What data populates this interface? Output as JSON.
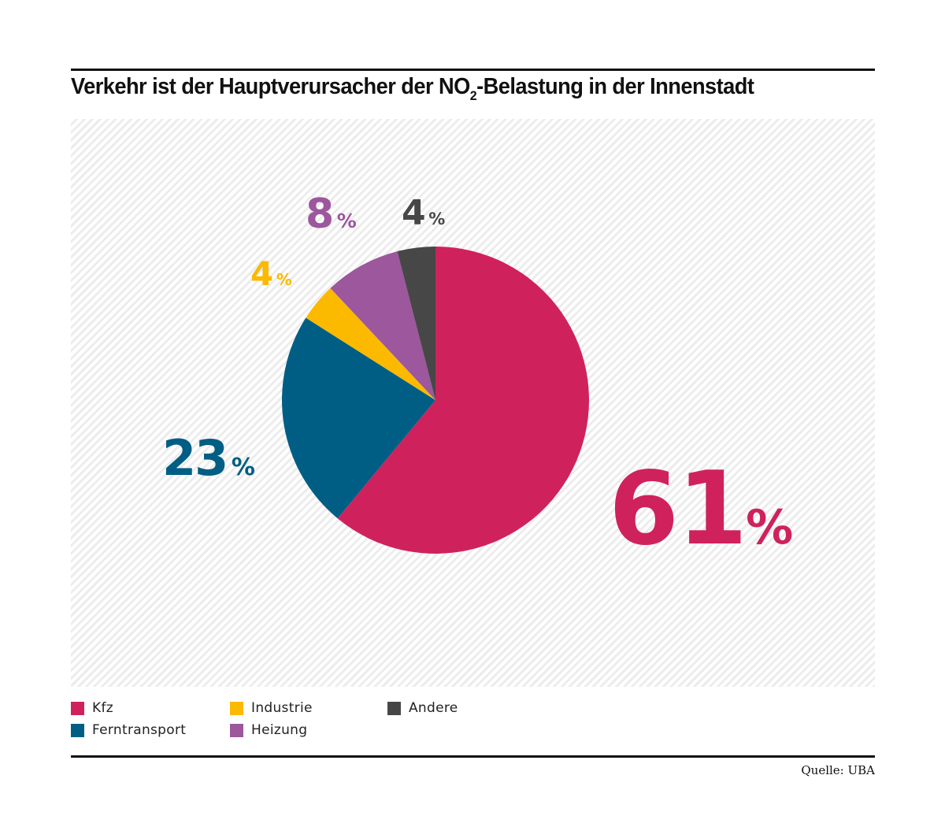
{
  "chart_data": {
    "type": "pie",
    "title_parts": {
      "before": "Verkehr ist der Hauptverursacher der NO",
      "subscript": "2",
      "after": "-Belastung in der Innenstadt"
    },
    "start_angle_deg": 0,
    "direction": "clockwise",
    "slices": [
      {
        "key": "kfz",
        "label": "Kfz",
        "value": 61,
        "value_label": "61",
        "unit": "%",
        "color": "#cf225c"
      },
      {
        "key": "ferntransport",
        "label": "Ferntransport",
        "value": 23,
        "value_label": "23",
        "unit": "%",
        "color": "#005e85"
      },
      {
        "key": "industrie",
        "label": "Industrie",
        "value": 4,
        "value_label": "4",
        "unit": "%",
        "color": "#fbb900"
      },
      {
        "key": "heizung",
        "label": "Heizung",
        "value": 8,
        "value_label": "8",
        "unit": "%",
        "color": "#9c579d"
      },
      {
        "key": "andere",
        "label": "Andere",
        "value": 4,
        "value_label": "4",
        "unit": "%",
        "color": "#474747"
      }
    ],
    "legend_position": "bottom-left",
    "source": "Quelle: UBA"
  }
}
